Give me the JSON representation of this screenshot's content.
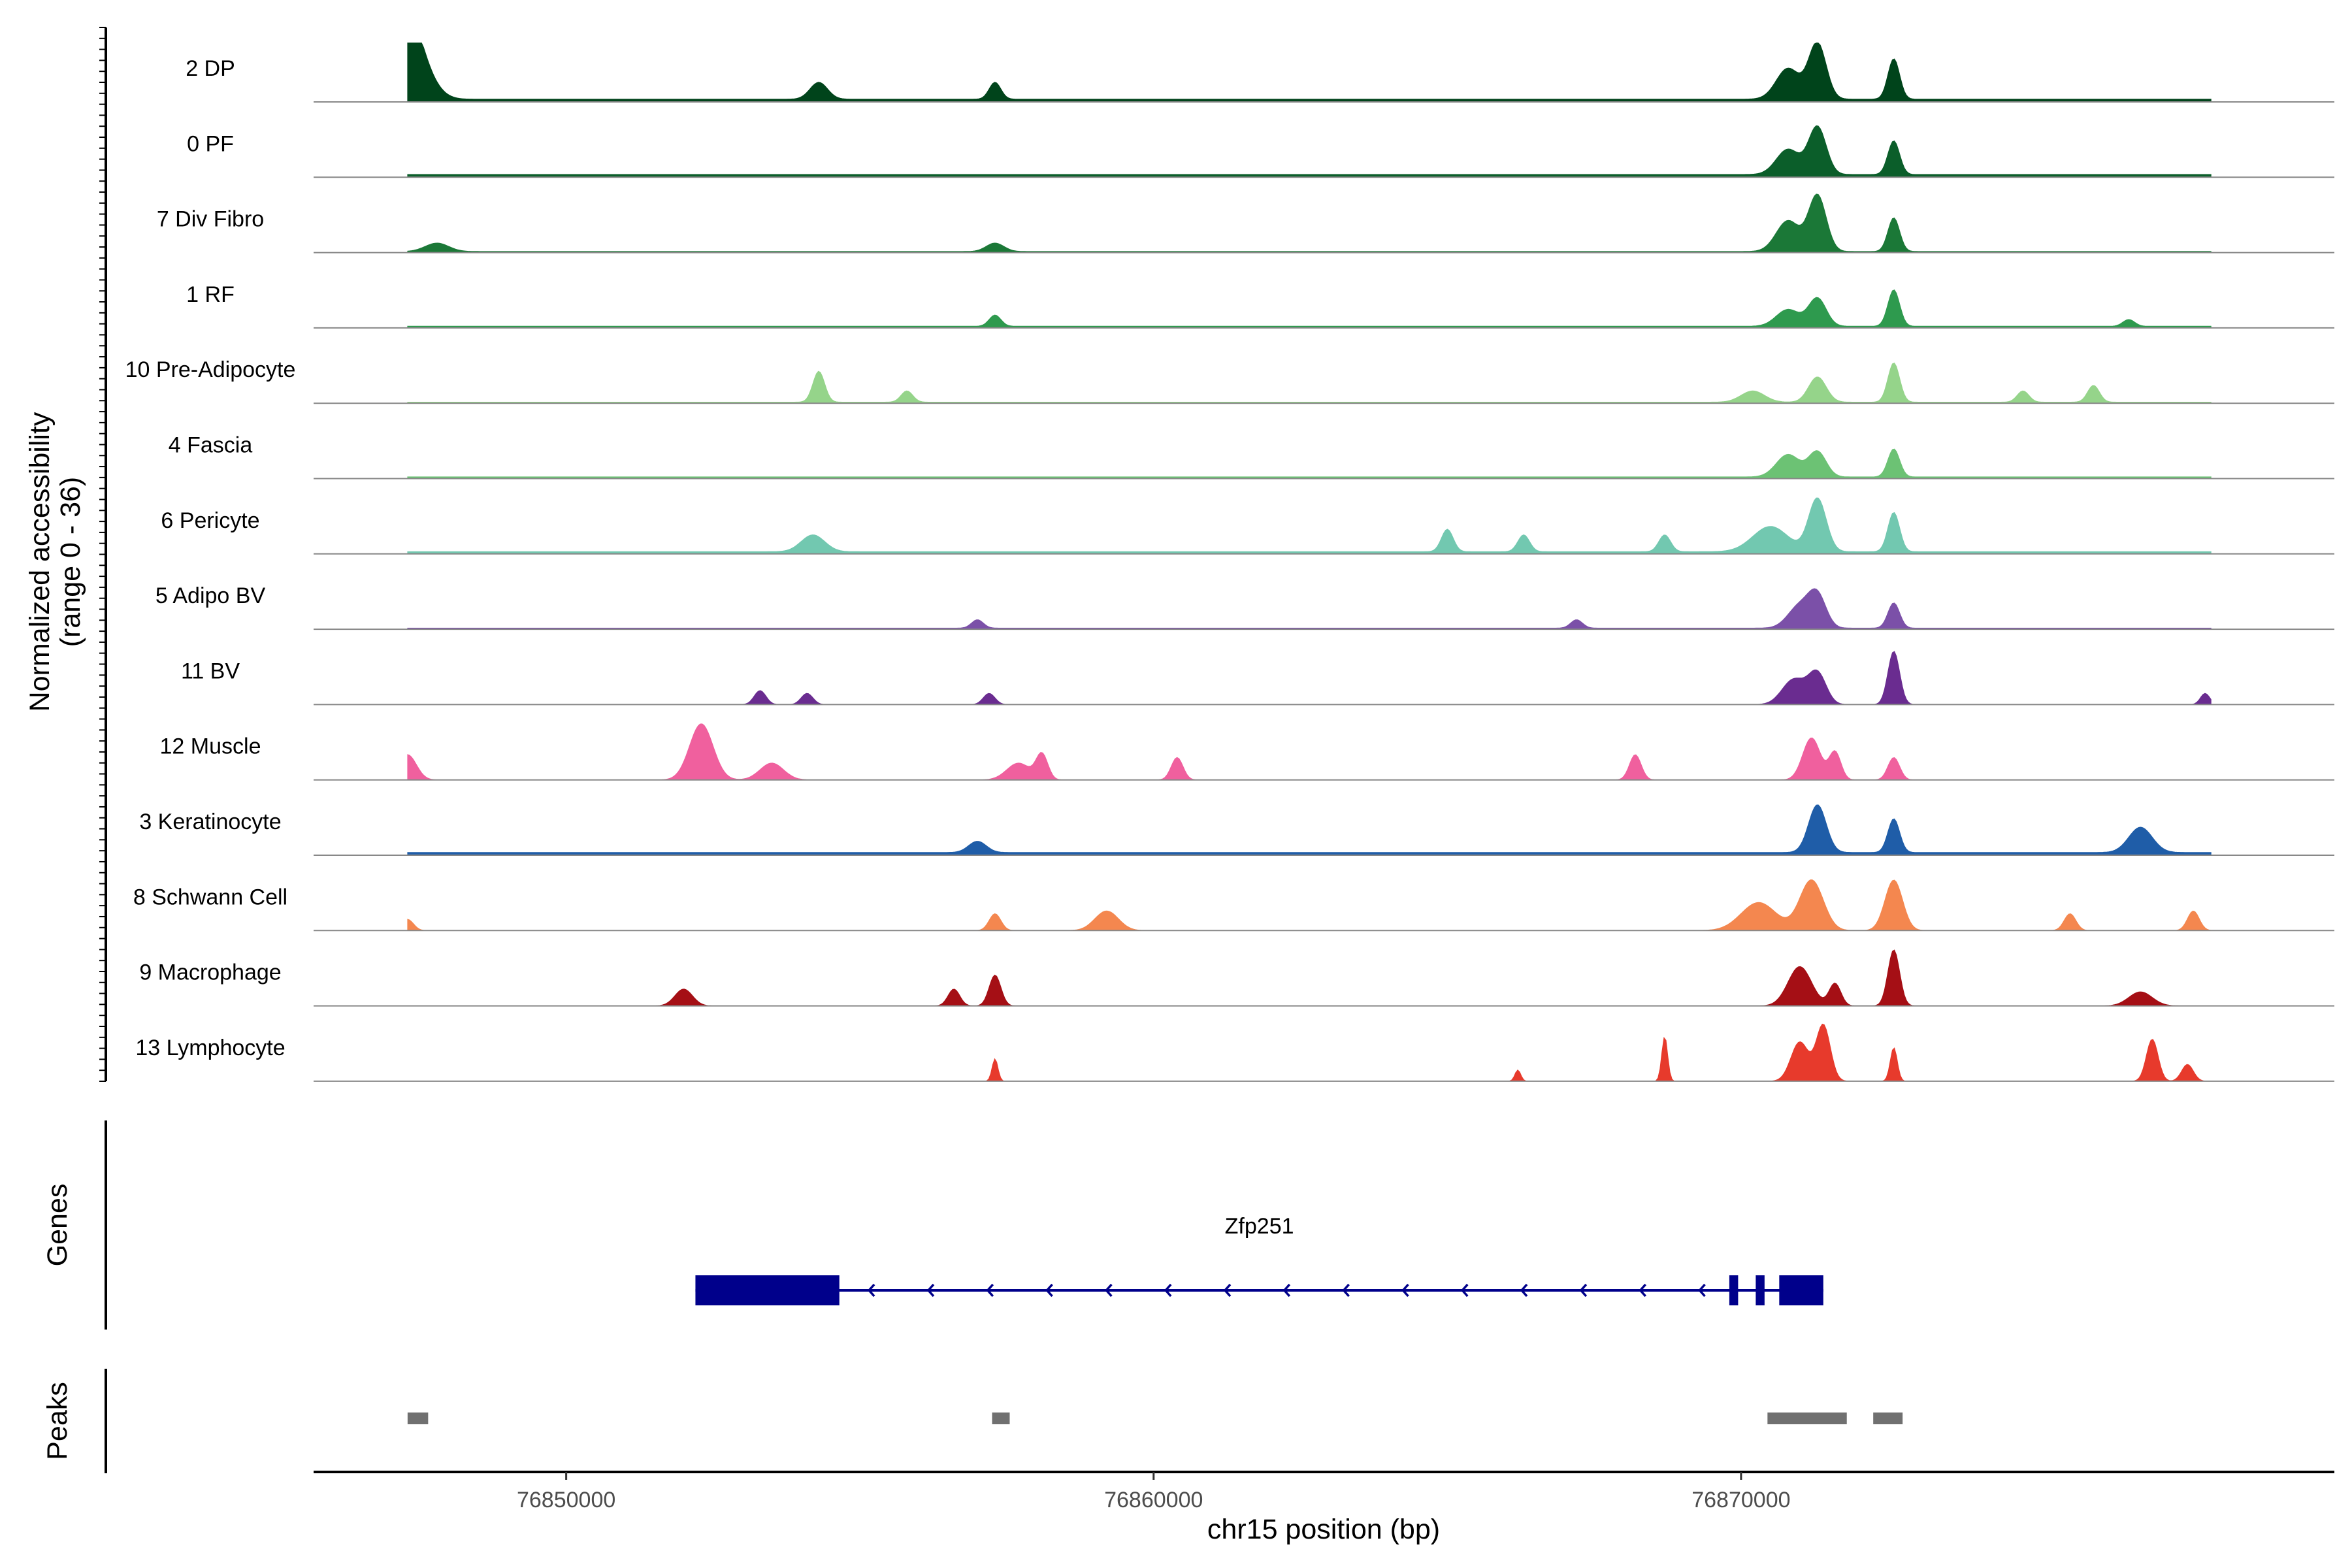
{
  "chart_data": {
    "type": "area",
    "title": "",
    "xlabel": "chr15 position (bp)",
    "ylabel_line1": "Normalized accessibility",
    "ylabel_line2": "(range 0 - 36)",
    "y_range": [
      0,
      36
    ],
    "xlim": [
      76845700,
      76880100
    ],
    "x_ticks": [
      {
        "value": 76850000,
        "label": "76850000"
      },
      {
        "value": 76860000,
        "label": "76860000"
      },
      {
        "value": 76870000,
        "label": "76870000"
      }
    ],
    "track_start": 76847300,
    "track_end": 76878000,
    "tracks": [
      {
        "name": "2 DP",
        "color": "#00441b",
        "baseline": 0.05,
        "peaks": [
          [
            76847300,
            1.0,
            0.2
          ],
          [
            76847500,
            0.55,
            0.25
          ],
          [
            76854300,
            0.3,
            0.15
          ],
          [
            76857300,
            0.3,
            0.1
          ],
          [
            76870800,
            0.55,
            0.2
          ],
          [
            76871300,
            1.0,
            0.15
          ],
          [
            76872600,
            0.72,
            0.1
          ]
        ]
      },
      {
        "name": "0 PF",
        "color": "#0b5e2a",
        "baseline": 0.05,
        "peaks": [
          [
            76870800,
            0.45,
            0.2
          ],
          [
            76871300,
            0.85,
            0.15
          ],
          [
            76872600,
            0.6,
            0.1
          ]
        ]
      },
      {
        "name": "7 Div Fibro",
        "color": "#1b7837",
        "baseline": 0.02,
        "peaks": [
          [
            76847800,
            0.15,
            0.2
          ],
          [
            76857300,
            0.15,
            0.15
          ],
          [
            76870800,
            0.55,
            0.2
          ],
          [
            76871300,
            1.0,
            0.15
          ],
          [
            76872600,
            0.6,
            0.1
          ]
        ]
      },
      {
        "name": "1 RF",
        "color": "#2e9a4e",
        "baseline": 0.03,
        "peaks": [
          [
            76857300,
            0.2,
            0.1
          ],
          [
            76870800,
            0.3,
            0.2
          ],
          [
            76871300,
            0.5,
            0.15
          ],
          [
            76872600,
            0.65,
            0.1
          ],
          [
            76876600,
            0.12,
            0.1
          ]
        ]
      },
      {
        "name": "10 Pre-Adipocyte",
        "color": "#95d48a",
        "baseline": 0.02,
        "peaks": [
          [
            76854300,
            0.55,
            0.1
          ],
          [
            76855800,
            0.2,
            0.1
          ],
          [
            76870200,
            0.2,
            0.2
          ],
          [
            76871300,
            0.45,
            0.15
          ],
          [
            76872600,
            0.7,
            0.1
          ],
          [
            76874800,
            0.2,
            0.1
          ],
          [
            76876000,
            0.3,
            0.1
          ]
        ]
      },
      {
        "name": "4 Fascia",
        "color": "#6cc274",
        "baseline": 0.03,
        "peaks": [
          [
            76870800,
            0.4,
            0.2
          ],
          [
            76871300,
            0.45,
            0.15
          ],
          [
            76872600,
            0.5,
            0.1
          ]
        ]
      },
      {
        "name": "6 Pericyte",
        "color": "#72c8b0",
        "baseline": 0.04,
        "peaks": [
          [
            76854200,
            0.3,
            0.2
          ],
          [
            76865000,
            0.4,
            0.1
          ],
          [
            76866300,
            0.3,
            0.1
          ],
          [
            76868700,
            0.3,
            0.1
          ],
          [
            76870500,
            0.45,
            0.3
          ],
          [
            76871300,
            0.95,
            0.15
          ],
          [
            76872600,
            0.7,
            0.1
          ]
        ]
      },
      {
        "name": "5 Adipo BV",
        "color": "#7b50a8",
        "baseline": 0.02,
        "peaks": [
          [
            76857000,
            0.15,
            0.1
          ],
          [
            76867200,
            0.15,
            0.1
          ],
          [
            76871000,
            0.4,
            0.2
          ],
          [
            76871300,
            0.55,
            0.15
          ],
          [
            76872600,
            0.45,
            0.1
          ]
        ]
      },
      {
        "name": "11 BV",
        "color": "#6a2c90",
        "baseline": 0.0,
        "peaks": [
          [
            76853300,
            0.25,
            0.1
          ],
          [
            76854100,
            0.2,
            0.1
          ],
          [
            76857200,
            0.2,
            0.1
          ],
          [
            76870900,
            0.45,
            0.2
          ],
          [
            76871300,
            0.55,
            0.15
          ],
          [
            76872600,
            0.95,
            0.1
          ],
          [
            76877900,
            0.2,
            0.08
          ]
        ]
      },
      {
        "name": "12 Muscle",
        "color": "#f0609e",
        "baseline": 0.0,
        "peaks": [
          [
            76847300,
            0.45,
            0.15
          ],
          [
            76852300,
            1.0,
            0.2
          ],
          [
            76853500,
            0.3,
            0.2
          ],
          [
            76857700,
            0.3,
            0.2
          ],
          [
            76858100,
            0.45,
            0.1
          ],
          [
            76860400,
            0.4,
            0.1
          ],
          [
            76868200,
            0.45,
            0.1
          ],
          [
            76871200,
            0.75,
            0.15
          ],
          [
            76871600,
            0.5,
            0.1
          ],
          [
            76872600,
            0.4,
            0.1
          ]
        ]
      },
      {
        "name": "3 Keratinocyte",
        "color": "#1f5da8",
        "baseline": 0.05,
        "peaks": [
          [
            76857000,
            0.2,
            0.15
          ],
          [
            76871300,
            0.85,
            0.15
          ],
          [
            76872600,
            0.6,
            0.1
          ],
          [
            76876800,
            0.45,
            0.2
          ]
        ]
      },
      {
        "name": "8 Schwann Cell",
        "color": "#f4874f",
        "baseline": 0.0,
        "peaks": [
          [
            76847300,
            0.2,
            0.1
          ],
          [
            76857300,
            0.3,
            0.1
          ],
          [
            76859200,
            0.35,
            0.2
          ],
          [
            76870300,
            0.5,
            0.3
          ],
          [
            76871200,
            0.9,
            0.2
          ],
          [
            76872600,
            0.9,
            0.15
          ],
          [
            76875600,
            0.3,
            0.1
          ],
          [
            76877700,
            0.35,
            0.1
          ]
        ]
      },
      {
        "name": "9 Macrophage",
        "color": "#a50f15",
        "baseline": 0.0,
        "peaks": [
          [
            76852000,
            0.3,
            0.15
          ],
          [
            76856600,
            0.3,
            0.1
          ],
          [
            76857300,
            0.55,
            0.1
          ],
          [
            76871000,
            0.7,
            0.2
          ],
          [
            76871600,
            0.4,
            0.1
          ],
          [
            76872600,
            1.0,
            0.1
          ],
          [
            76876800,
            0.25,
            0.2
          ]
        ]
      },
      {
        "name": "13 Lymphocyte",
        "color": "#e73a2c",
        "baseline": 0.0,
        "peaks": [
          [
            76857300,
            0.4,
            0.05
          ],
          [
            76866200,
            0.2,
            0.05
          ],
          [
            76868700,
            0.8,
            0.05
          ],
          [
            76871000,
            0.7,
            0.15
          ],
          [
            76871400,
            1.0,
            0.12
          ],
          [
            76872600,
            0.6,
            0.06
          ],
          [
            76877000,
            0.75,
            0.1
          ],
          [
            76877600,
            0.3,
            0.1
          ]
        ]
      }
    ],
    "genes": {
      "panel_label": "Genes",
      "items": [
        {
          "name": "Zfp251",
          "start": 76852200,
          "end": 76871400,
          "strand": "-",
          "exons": [
            [
              76852200,
              76854650
            ],
            [
              76869800,
              76869950
            ],
            [
              76870250,
              76870400
            ],
            [
              76870650,
              76871400
            ]
          ]
        }
      ]
    },
    "peaks_track": {
      "panel_label": "Peaks",
      "regions": [
        [
          76847300,
          76847650
        ],
        [
          76857250,
          76857550
        ],
        [
          76870450,
          76871800
        ],
        [
          76872250,
          76872750
        ]
      ]
    }
  }
}
